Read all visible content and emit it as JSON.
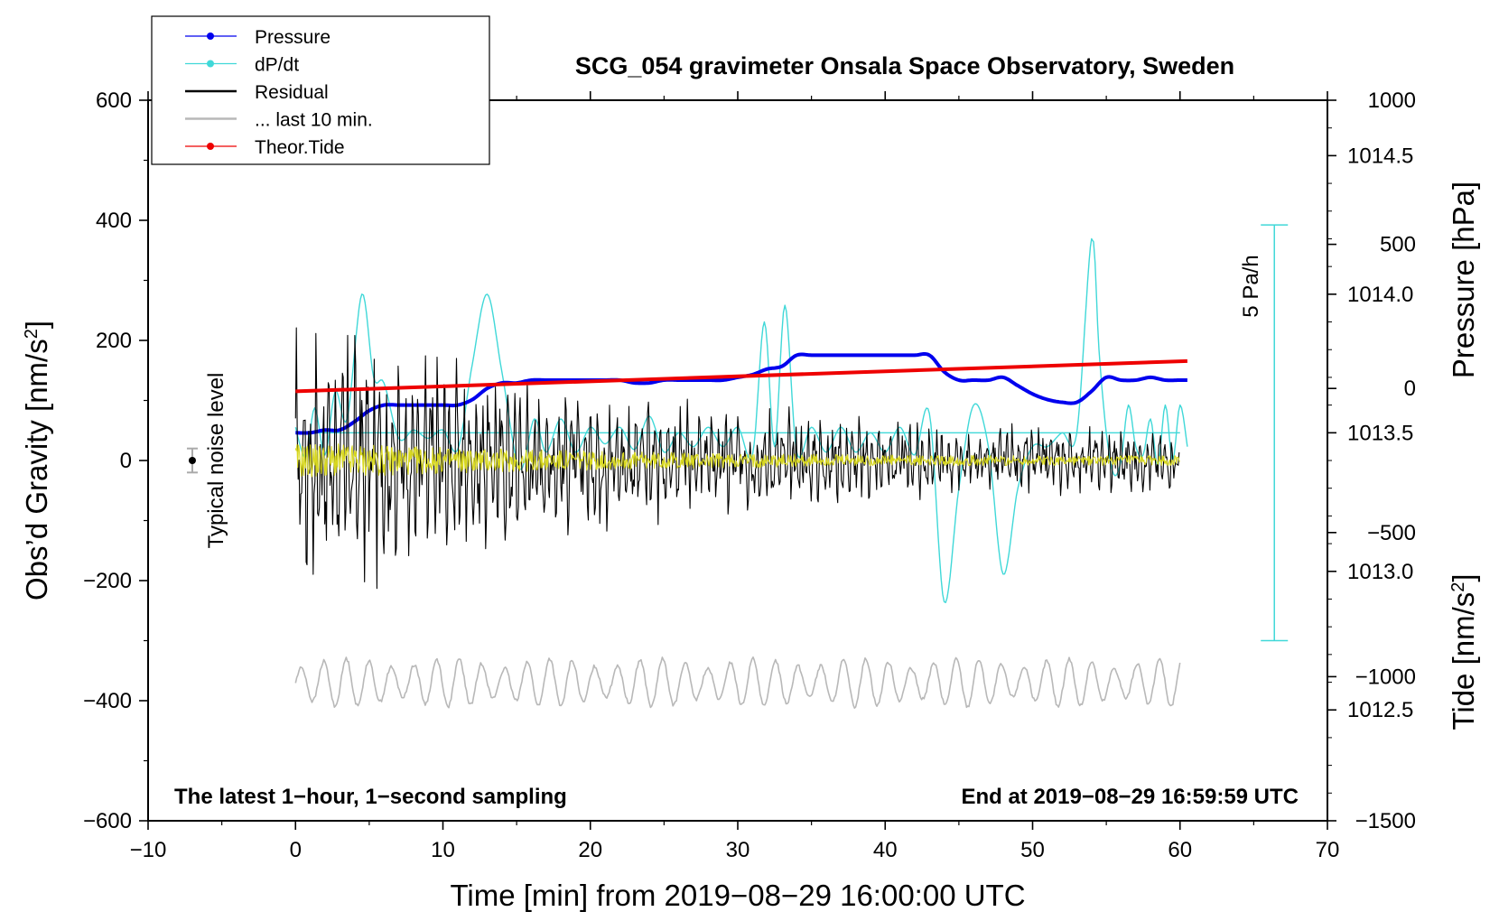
{
  "chart_data": {
    "type": "line",
    "title": "SCG_054 gravimeter Onsala Space Observatory, Sweden",
    "xlabel": "Time [min] from 2019−08−29 16:00:00 UTC",
    "ylabel_left": "Obs’d Gravity [nm/s2]",
    "ylabel_left_main": "Obs’d Gravity [nm/s",
    "ylabel_left_sup": "2",
    "ylabel_left_end": "]",
    "ylabel_pressure": "Pressure [hPa]",
    "ylabel_tide": "Tide [nm/s2]",
    "ylabel_tide_main": "Tide [nm/s",
    "ylabel_tide_sup": "2",
    "ylabel_tide_end": "]",
    "xlim": [
      -10,
      70
    ],
    "ylim_left": [
      -600,
      600
    ],
    "pressure_lim": [
      1012.1,
      1014.7
    ],
    "tide_lim": [
      -1500,
      1000
    ],
    "x_ticks": [
      "−10",
      "0",
      "10",
      "20",
      "30",
      "40",
      "50",
      "60",
      "70"
    ],
    "x_tick_values": [
      -10,
      0,
      10,
      20,
      30,
      40,
      50,
      60,
      70
    ],
    "y_left_ticks": [
      "−600",
      "−400",
      "−200",
      "0",
      "200",
      "400",
      "600"
    ],
    "y_left_tick_values": [
      -600,
      -400,
      -200,
      0,
      200,
      400,
      600
    ],
    "pressure_ticks": [
      "1012.5",
      "1013.0",
      "1013.5",
      "1014.0",
      "1014.5"
    ],
    "pressure_tick_values": [
      1012.5,
      1013.0,
      1013.5,
      1014.0,
      1014.5
    ],
    "tide_ticks": [
      "−1500",
      "−1000",
      "−500",
      "0",
      "500",
      "1000"
    ],
    "tide_tick_values": [
      -1500,
      -1000,
      -500,
      0,
      500,
      1000
    ],
    "legend": [
      "Pressure",
      "dP/dt",
      "Residual",
      "... last 10 min.",
      "Theor.Tide"
    ],
    "annotation_left": "The latest 1−hour, 1−second sampling",
    "annotation_right": "End at 2019−08−29 16:59:59 UTC",
    "noise_label": "Typical noise level",
    "noise_level": {
      "x": -7,
      "y": 0,
      "err": 20
    },
    "scale_bar_label": "5 Pa/h",
    "scale_bar_range_hPa": [
      1012.75,
      1014.25
    ],
    "colors": {
      "pressure": "#0000ee",
      "dpdt": "#40d8d8",
      "residual": "#000000",
      "last10": "#b8b8b8",
      "tide": "#ee0000",
      "yellow": "#d8d820"
    },
    "series": [
      {
        "name": "Pressure",
        "unit": "hPa",
        "x": [
          0,
          1,
          2,
          3,
          4,
          5,
          6,
          7,
          8,
          9,
          10,
          11,
          12,
          13,
          14,
          15,
          16,
          17,
          18,
          19,
          20,
          21,
          22,
          23,
          24,
          25,
          26,
          27,
          28,
          29,
          30,
          31,
          32,
          33,
          34,
          35,
          36,
          37,
          38,
          39,
          40,
          41,
          42,
          43,
          44,
          45,
          46,
          47,
          48,
          49,
          50,
          51,
          52,
          53,
          54,
          55,
          56,
          57,
          58,
          59,
          60,
          60.5
        ],
        "values": [
          1013.5,
          1013.5,
          1013.51,
          1013.51,
          1013.54,
          1013.58,
          1013.6,
          1013.6,
          1013.6,
          1013.6,
          1013.6,
          1013.6,
          1013.62,
          1013.66,
          1013.68,
          1013.68,
          1013.69,
          1013.69,
          1013.69,
          1013.69,
          1013.69,
          1013.69,
          1013.69,
          1013.68,
          1013.68,
          1013.69,
          1013.69,
          1013.69,
          1013.69,
          1013.69,
          1013.7,
          1013.71,
          1013.73,
          1013.74,
          1013.78,
          1013.78,
          1013.78,
          1013.78,
          1013.78,
          1013.78,
          1013.78,
          1013.78,
          1013.78,
          1013.78,
          1013.72,
          1013.69,
          1013.69,
          1013.69,
          1013.7,
          1013.67,
          1013.64,
          1013.62,
          1013.61,
          1013.61,
          1013.65,
          1013.7,
          1013.69,
          1013.69,
          1013.7,
          1013.69,
          1013.69,
          1013.69
        ]
      },
      {
        "name": "dP/dt",
        "unit": "hPa-equivalent display",
        "x": [
          0,
          0.7,
          1.3,
          2,
          2.7,
          3.5,
          4.5,
          5.3,
          6,
          7,
          8,
          9,
          10,
          11,
          12,
          13,
          14,
          15.2,
          16.2,
          17,
          18,
          19,
          20,
          21,
          22,
          23,
          24,
          25,
          26,
          27,
          28,
          29,
          30,
          31,
          31.8,
          32.5,
          33.2,
          34,
          35,
          36,
          37,
          38,
          39,
          40,
          41,
          42,
          43,
          44,
          45,
          46,
          47,
          48,
          49,
          50,
          51,
          52,
          53,
          54,
          54.5,
          55,
          55.5,
          56,
          56.5,
          57,
          57.5,
          58,
          58.5,
          59,
          59.5,
          60,
          60.5
        ],
        "values": [
          1013.52,
          1013.41,
          1013.59,
          1013.42,
          1013.65,
          1013.55,
          1014.0,
          1013.7,
          1013.68,
          1013.48,
          1013.51,
          1013.48,
          1013.51,
          1013.44,
          1013.75,
          1014.0,
          1013.72,
          1013.37,
          1013.55,
          1013.43,
          1013.55,
          1013.43,
          1013.52,
          1013.46,
          1013.52,
          1013.44,
          1013.56,
          1013.43,
          1013.5,
          1013.45,
          1013.52,
          1013.45,
          1013.52,
          1013.42,
          1013.9,
          1013.45,
          1013.96,
          1013.43,
          1013.52,
          1013.43,
          1013.52,
          1013.43,
          1013.5,
          1013.43,
          1013.52,
          1013.42,
          1013.57,
          1012.89,
          1013.3,
          1013.6,
          1013.45,
          1012.99,
          1013.3,
          1013.45,
          1013.45,
          1013.5,
          1013.5,
          1014.2,
          1013.8,
          1013.5,
          1013.35,
          1013.4,
          1013.6,
          1013.45,
          1013.42,
          1013.55,
          1013.38,
          1013.6,
          1013.4,
          1013.6,
          1013.45
        ]
      },
      {
        "name": "Residual",
        "unit": "nm/s2",
        "x": [
          0,
          60
        ],
        "envelope": [
          200,
          150,
          100,
          80,
          60,
          45
        ],
        "envelope_x": [
          0,
          10,
          20,
          30,
          40,
          60
        ],
        "extremes": {
          "max": 230,
          "min": -230
        }
      },
      {
        "name": "... last 10 min.",
        "unit": "nm/s2",
        "x": [
          0,
          60
        ],
        "center": -370,
        "amplitude": 40
      },
      {
        "name": "Theor.Tide",
        "unit": "nm/s2",
        "x": [
          0,
          60.5
        ],
        "values": [
          -10,
          95
        ]
      }
    ]
  }
}
